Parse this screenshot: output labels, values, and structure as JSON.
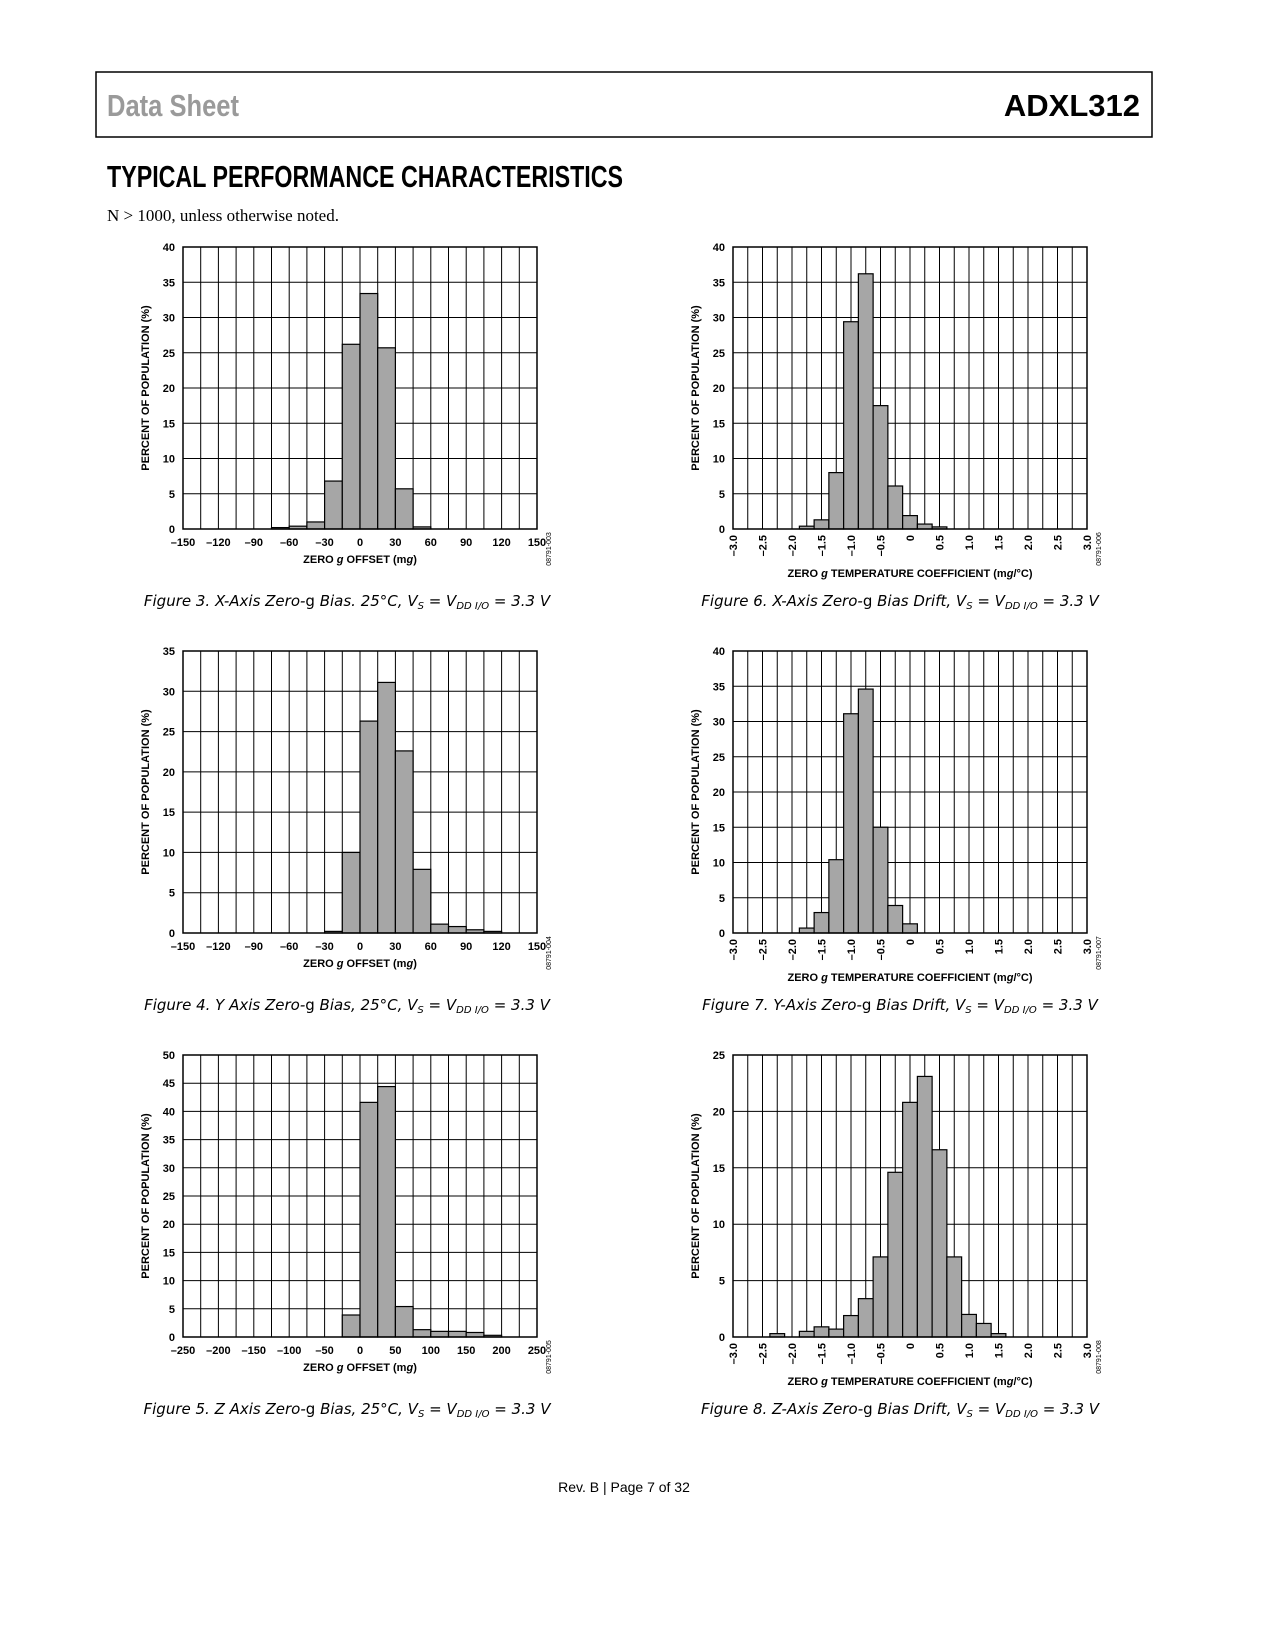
{
  "header": {
    "left": "Data Sheet",
    "right": "ADXL312"
  },
  "heading": "TYPICAL PERFORMANCE CHARACTERISTICS",
  "note": "N > 1000, unless otherwise noted.",
  "footer": "Rev. B | Page 7 of 32",
  "chart_data": [
    {
      "type": "histogram",
      "color": "#a6a6a6",
      "grid": true,
      "ylabel": "PERCENT OF POPULATION (%)",
      "xlabel": [
        "ZERO ",
        "g",
        " OFFSET (m",
        "g",
        ")"
      ],
      "caption": [
        "Figure 3. X-Axis Zero-",
        "g",
        " Bias. 25°C, V",
        "S",
        " = V",
        "DD I/O",
        " = 3.3 V"
      ],
      "code": "08791-003",
      "bins": [
        -75,
        -60,
        -45,
        -30,
        -15,
        0,
        15,
        30,
        45,
        60
      ],
      "values": [
        0.2,
        0.4,
        1.0,
        6.8,
        26.2,
        33.4,
        25.7,
        5.7,
        0.3
      ],
      "xlim": [
        -150,
        150
      ],
      "ylim": [
        0,
        40
      ],
      "xticks": [
        {
          "value": -150,
          "label": "–150"
        },
        {
          "value": -120,
          "label": "–120"
        },
        {
          "value": -90,
          "label": "–90"
        },
        {
          "value": -60,
          "label": "–60"
        },
        {
          "value": -30,
          "label": "–30"
        },
        0,
        30,
        60,
        90,
        120,
        150
      ],
      "yticks": [
        0,
        5,
        10,
        15,
        20,
        25,
        30,
        35,
        40
      ]
    },
    {
      "type": "histogram",
      "color": "#a6a6a6",
      "grid": true,
      "ylabel": "PERCENT OF POPULATION (%)",
      "xlabel": [
        "ZERO ",
        "g",
        " OFFSET (m",
        "g",
        ")"
      ],
      "caption": [
        "Figure 4. Y Axis Zero-",
        "g",
        " Bias, 25°C, V",
        "S",
        " = V",
        "DD I/O",
        " = 3.3 V"
      ],
      "code": "08791-004",
      "bins": [
        -30,
        -15,
        0,
        15,
        30,
        45,
        60,
        75,
        90,
        105,
        120
      ],
      "values": [
        0.2,
        10.0,
        26.3,
        31.1,
        22.6,
        7.9,
        1.1,
        0.8,
        0.4,
        0.2
      ],
      "xlim": [
        -150,
        150
      ],
      "ylim": [
        0,
        35
      ],
      "xticks": [
        {
          "value": -150,
          "label": "–150"
        },
        {
          "value": -120,
          "label": "–120"
        },
        {
          "value": -90,
          "label": "–90"
        },
        {
          "value": -60,
          "label": "–60"
        },
        {
          "value": -30,
          "label": "–30"
        },
        0,
        30,
        60,
        90,
        120,
        150
      ],
      "yticks": [
        0,
        5,
        10,
        15,
        20,
        25,
        30,
        35
      ]
    },
    {
      "type": "histogram",
      "color": "#a6a6a6",
      "grid": true,
      "ylabel": "PERCENT OF POPULATION (%)",
      "xlabel": [
        "ZERO ",
        "g",
        " OFFSET (m",
        "g",
        ")"
      ],
      "caption": [
        "Figure 5. Z Axis Zero-",
        "g",
        " Bias, 25°C, V",
        "S",
        " = V",
        "DD I/O",
        " = 3.3 V"
      ],
      "code": "08791-005",
      "bins": [
        -25,
        0,
        25,
        50,
        75,
        100,
        125,
        150,
        175,
        200
      ],
      "values": [
        3.9,
        41.6,
        44.4,
        5.4,
        1.3,
        1.0,
        1.0,
        0.8,
        0.3
      ],
      "xlim": [
        -250,
        250
      ],
      "ylim": [
        0,
        50
      ],
      "xticks": [
        {
          "value": -250,
          "label": "–250"
        },
        {
          "value": -200,
          "label": "–200"
        },
        {
          "value": -150,
          "label": "–150"
        },
        {
          "value": -100,
          "label": "–100"
        },
        {
          "value": -50,
          "label": "–50"
        },
        0,
        50,
        100,
        150,
        200,
        250
      ],
      "yticks": [
        0,
        5,
        10,
        15,
        20,
        25,
        30,
        35,
        40,
        45,
        50
      ]
    },
    {
      "type": "histogram",
      "color": "#a6a6a6",
      "grid": true,
      "x_tick_rotation": 90,
      "ylabel": "PERCENT OF POPULATION (%)",
      "xlabel": [
        "ZERO ",
        "g",
        " TEMPERATURE COEFFICIENT (m",
        "g",
        "/°C)"
      ],
      "caption": [
        "Figure 6. X-Axis Zero-",
        "g",
        " Bias Drift, V",
        "S",
        " = V",
        "DD I/O",
        " = 3.3 V"
      ],
      "code": "08791-006",
      "bins": [
        -1.875,
        -1.625,
        -1.375,
        -1.125,
        -0.875,
        -0.625,
        -0.375,
        -0.125,
        0.125,
        0.375,
        0.625
      ],
      "values": [
        0.4,
        1.3,
        8.0,
        29.4,
        36.2,
        17.5,
        6.1,
        1.9,
        0.7,
        0.3
      ],
      "xlim": [
        -3,
        3
      ],
      "ylim": [
        0,
        40
      ],
      "xticks": [
        {
          "value": -3,
          "label": "–3.0"
        },
        {
          "value": -2.5,
          "label": "–2.5"
        },
        {
          "value": -2,
          "label": "–2.0"
        },
        {
          "value": -1.5,
          "label": "–1.5"
        },
        {
          "value": -1,
          "label": "–1.0"
        },
        {
          "value": -0.5,
          "label": "–0.5"
        },
        0,
        0.5,
        {
          "value": 1,
          "label": "1.0"
        },
        1.5,
        {
          "value": 2,
          "label": "2.0"
        },
        2.5,
        {
          "value": 3,
          "label": "3.0"
        }
      ],
      "yticks": [
        0,
        5,
        10,
        15,
        20,
        25,
        30,
        35,
        40
      ]
    },
    {
      "type": "histogram",
      "color": "#a6a6a6",
      "grid": true,
      "x_tick_rotation": 90,
      "ylabel": "PERCENT OF POPULATION (%)",
      "xlabel": [
        "ZERO ",
        "g",
        " TEMPERATURE COEFFICIENT (m",
        "g",
        "/°C)"
      ],
      "caption": [
        "Figure 7. Y-Axis Zero-",
        "g",
        " Bias Drift, V",
        "S",
        " = V",
        "DD I/O",
        " = 3.3 V"
      ],
      "code": "08791-007",
      "bins": [
        -1.875,
        -1.625,
        -1.375,
        -1.125,
        -0.875,
        -0.625,
        -0.375,
        -0.125,
        0.125
      ],
      "values": [
        0.7,
        2.9,
        10.4,
        31.1,
        34.6,
        15.0,
        3.9,
        1.3
      ],
      "xlim": [
        -3,
        3
      ],
      "ylim": [
        0,
        40
      ],
      "xticks": [
        {
          "value": -3,
          "label": "–3.0"
        },
        {
          "value": -2.5,
          "label": "–2.5"
        },
        {
          "value": -2,
          "label": "–2.0"
        },
        {
          "value": -1.5,
          "label": "–1.5"
        },
        {
          "value": -1,
          "label": "–1.0"
        },
        {
          "value": -0.5,
          "label": "–0.5"
        },
        0,
        0.5,
        {
          "value": 1,
          "label": "1.0"
        },
        1.5,
        {
          "value": 2,
          "label": "2.0"
        },
        2.5,
        {
          "value": 3,
          "label": "3.0"
        }
      ],
      "yticks": [
        0,
        5,
        10,
        15,
        20,
        25,
        30,
        35,
        40
      ]
    },
    {
      "type": "histogram",
      "color": "#a6a6a6",
      "grid": true,
      "x_tick_rotation": 90,
      "ylabel": "PERCENT OF POPULATION (%)",
      "xlabel": [
        "ZERO ",
        "g",
        " TEMPERATURE COEFFICIENT (m",
        "g",
        "/°C)"
      ],
      "caption": [
        "Figure 8. Z-Axis Zero-",
        "g",
        " Bias Drift, V",
        "S",
        " = V",
        "DD I/O",
        " = 3.3 V"
      ],
      "code": "08791-008",
      "bins": [
        -2.375,
        -2.125,
        -1.875,
        -1.625,
        -1.375,
        -1.125,
        -0.875,
        -0.625,
        -0.375,
        -0.125,
        0.125,
        0.375,
        0.625,
        0.875,
        1.125,
        1.375,
        1.625
      ],
      "values": [
        0.3,
        0,
        0.5,
        0.9,
        0.7,
        1.9,
        3.4,
        7.1,
        14.6,
        20.8,
        23.1,
        16.6,
        7.1,
        2.0,
        1.2,
        0.3
      ],
      "xlim": [
        -3,
        3
      ],
      "ylim": [
        0,
        25
      ],
      "xticks": [
        {
          "value": -3,
          "label": "–3.0"
        },
        {
          "value": -2.5,
          "label": "–2.5"
        },
        {
          "value": -2,
          "label": "–2.0"
        },
        {
          "value": -1.5,
          "label": "–1.5"
        },
        {
          "value": -1,
          "label": "–1.0"
        },
        {
          "value": -0.5,
          "label": "–0.5"
        },
        0,
        0.5,
        {
          "value": 1,
          "label": "1.0"
        },
        1.5,
        {
          "value": 2,
          "label": "2.0"
        },
        2.5,
        {
          "value": 3,
          "label": "3.0"
        }
      ],
      "yticks": [
        0,
        5,
        10,
        15,
        20,
        25
      ]
    }
  ]
}
